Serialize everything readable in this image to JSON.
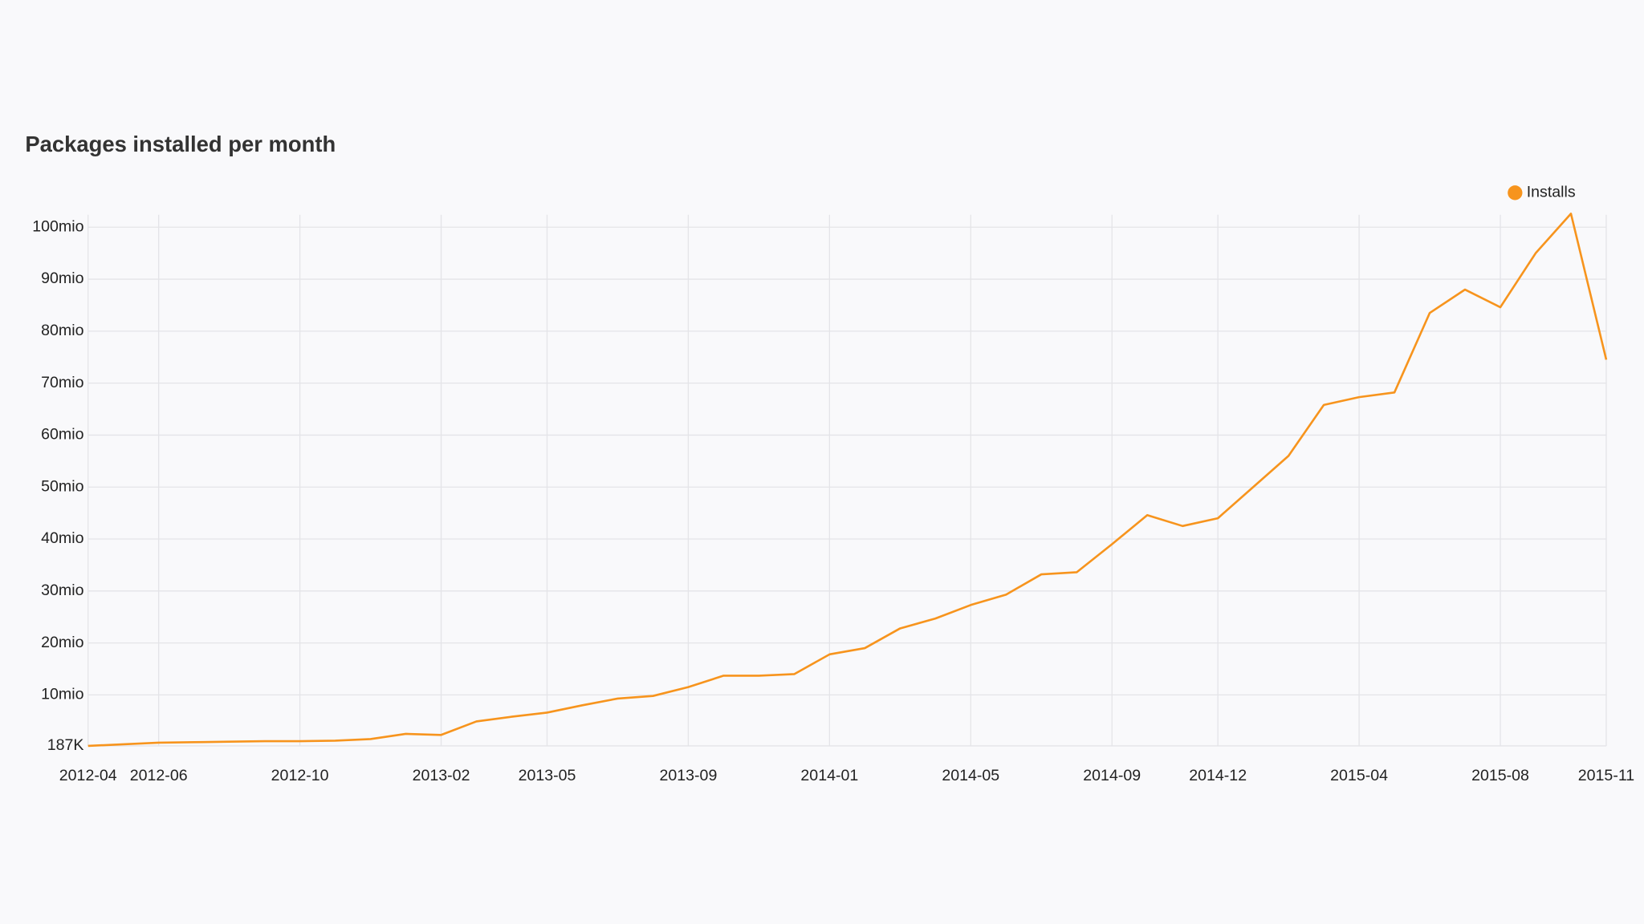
{
  "chart_data": {
    "type": "line",
    "title": "Packages installed per month",
    "x": [
      "2012-04",
      "2012-05",
      "2012-06",
      "2012-07",
      "2012-08",
      "2012-09",
      "2012-10",
      "2012-11",
      "2012-12",
      "2013-01",
      "2013-02",
      "2013-03",
      "2013-04",
      "2013-05",
      "2013-06",
      "2013-07",
      "2013-08",
      "2013-09",
      "2013-10",
      "2013-11",
      "2013-12",
      "2014-01",
      "2014-02",
      "2014-03",
      "2014-04",
      "2014-05",
      "2014-06",
      "2014-07",
      "2014-08",
      "2014-09",
      "2014-10",
      "2014-11",
      "2014-12",
      "2015-01",
      "2015-02",
      "2015-03",
      "2015-04",
      "2015-05",
      "2015-06",
      "2015-07",
      "2015-08",
      "2015-09",
      "2015-10",
      "2015-11"
    ],
    "series": [
      {
        "name": "Installs",
        "color": "#f7941d",
        "values": [
          190000,
          500000,
          800000,
          900000,
          1000000,
          1100000,
          1100000,
          1200000,
          1500000,
          2500000,
          2300000,
          4900000,
          5800000,
          6600000,
          8000000,
          9300000,
          9800000,
          11500000,
          13700000,
          13700000,
          14000000,
          17800000,
          19000000,
          22800000,
          24700000,
          27300000,
          29300000,
          33200000,
          33600000,
          39000000,
          44600000,
          42500000,
          44000000,
          50000000,
          56000000,
          65800000,
          67300000,
          68200000,
          83500000,
          88000000,
          84600000,
          95000000,
          102600000,
          74500000
        ]
      }
    ],
    "ylim": [
      187000,
      103000000
    ],
    "yticks": [
      {
        "value": 187000,
        "label": "187K"
      },
      {
        "value": 10000000,
        "label": "10mio"
      },
      {
        "value": 20000000,
        "label": "20mio"
      },
      {
        "value": 30000000,
        "label": "30mio"
      },
      {
        "value": 40000000,
        "label": "40mio"
      },
      {
        "value": 50000000,
        "label": "50mio"
      },
      {
        "value": 60000000,
        "label": "60mio"
      },
      {
        "value": 70000000,
        "label": "70mio"
      },
      {
        "value": 80000000,
        "label": "80mio"
      },
      {
        "value": 90000000,
        "label": "90mio"
      },
      {
        "value": 100000000,
        "label": "100mio"
      }
    ],
    "xticks": [
      "2012-04",
      "2012-06",
      "2012-10",
      "2013-02",
      "2013-05",
      "2013-09",
      "2014-01",
      "2014-05",
      "2014-09",
      "2014-12",
      "2015-04",
      "2015-08",
      "2015-11"
    ],
    "grid": true,
    "legend": "top-right"
  }
}
